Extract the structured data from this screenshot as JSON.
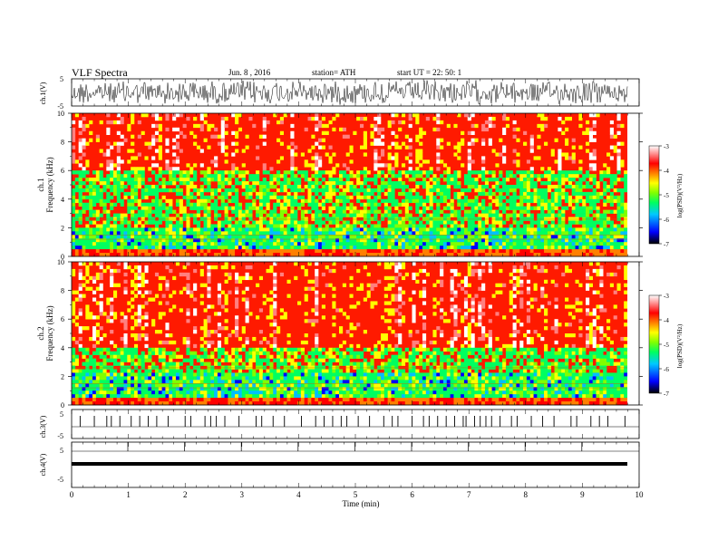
{
  "header": {
    "title": "VLF  Spectra",
    "date": "Jun. 8  , 2016",
    "station": "station= ATH",
    "start": "start  UT =   22: 50: 1"
  },
  "chart_data": [
    {
      "type": "line",
      "name": "ch1-waveform",
      "ylabel": "ch.1(V)",
      "ylim": [
        -5,
        5
      ],
      "yticks": [
        "5",
        "-5"
      ],
      "description_values": "dense noise signal around 0, amplitude about ±3 V"
    },
    {
      "type": "heatmap",
      "name": "ch1-spectrogram",
      "ylabel": [
        "ch.1",
        "Frequency  (kHz)"
      ],
      "ylim": [
        0,
        10
      ],
      "yticks": [
        "0",
        "2",
        "4",
        "6",
        "8",
        "10"
      ],
      "colorbar": {
        "label": "log(PSD)(V²/Hz)",
        "ticks": [
          "-3",
          "-4",
          "-5",
          "-6",
          "-7"
        ],
        "range": [
          -7,
          -3
        ]
      }
    },
    {
      "type": "heatmap",
      "name": "ch2-spectrogram",
      "ylabel": [
        "ch.2",
        "Frequency  (kHz)"
      ],
      "ylim": [
        0,
        10
      ],
      "yticks": [
        "0",
        "2",
        "4",
        "6",
        "8",
        "10"
      ],
      "colorbar": {
        "label": "log(PSD)(V²/Hz)",
        "ticks": [
          "-3",
          "-4",
          "-5",
          "-6",
          "-7"
        ],
        "range": [
          -7,
          -3
        ]
      }
    },
    {
      "type": "line",
      "name": "ch3-waveform",
      "ylabel": "ch.3(V)",
      "yticks": [
        "5",
        "-5"
      ],
      "spike_times_min": [
        0.15,
        0.4,
        0.62,
        0.7,
        0.85,
        1.05,
        1.2,
        1.35,
        1.5,
        1.7,
        2.0,
        2.1,
        2.35,
        2.45,
        2.55,
        2.7,
        2.95,
        3.25,
        3.35,
        3.55,
        3.75,
        4.05,
        4.3,
        4.45,
        4.6,
        4.75,
        4.85,
        5.05,
        5.25,
        5.5,
        5.65,
        5.75,
        6.0,
        6.2,
        6.3,
        6.45,
        6.6,
        6.75,
        6.9,
        6.95,
        7.1,
        7.2,
        7.3,
        7.4,
        7.55,
        7.75,
        7.85,
        8.1,
        8.3,
        8.5,
        8.8,
        8.9,
        9.15,
        9.3,
        9.45,
        9.75
      ]
    },
    {
      "type": "line",
      "name": "ch4-waveform",
      "ylabel": "ch.4(V)",
      "yticks": [
        "5",
        "-5"
      ],
      "level_v": 0,
      "marker_times_min": [
        0,
        1,
        2,
        3,
        4,
        5,
        6,
        7,
        8,
        9
      ]
    }
  ],
  "xaxis": {
    "label": "Time  (min)",
    "ticks": [
      "0",
      "1",
      "2",
      "3",
      "4",
      "5",
      "6",
      "7",
      "8",
      "9",
      "10"
    ],
    "range": [
      0,
      10
    ]
  },
  "colors": {
    "colormap": [
      "#000000",
      "#0000ff",
      "#00c0ff",
      "#00ff60",
      "#80ff00",
      "#ffff00",
      "#ff8000",
      "#ff0000",
      "#ff8080",
      "#ffffff"
    ]
  }
}
